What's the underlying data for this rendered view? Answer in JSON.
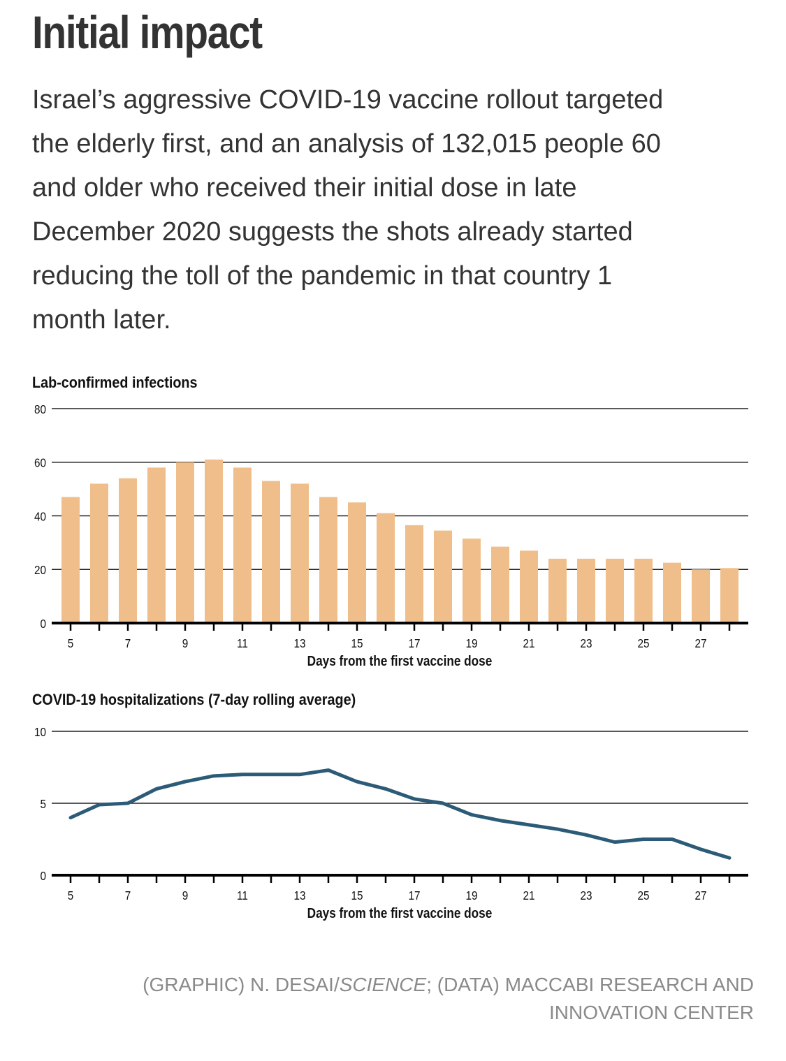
{
  "header": {
    "title": "Initial impact",
    "dek_lines": [
      "Israel’s aggressive COVID-19 vaccine rollout targeted",
      "the elderly first, and an analysis of 132,015 people 60",
      "and older who received their initial dose in late",
      "December 2020 suggests the shots already started",
      "reducing the toll of the pandemic in that country 1",
      "month later."
    ]
  },
  "colors": {
    "bar": "#EFBE8A",
    "line": "#2C5B78",
    "axis": "#111111",
    "text": "#333333",
    "credit": "#8a8a8a"
  },
  "chart_data": [
    {
      "type": "bar",
      "title": "Lab-confirmed infections",
      "xlabel": "Days from the first vaccine dose",
      "ylabel": "",
      "x": [
        5,
        6,
        7,
        8,
        9,
        10,
        11,
        12,
        13,
        14,
        15,
        16,
        17,
        18,
        19,
        20,
        21,
        22,
        23,
        24,
        25,
        26,
        27,
        28
      ],
      "values": [
        47,
        52,
        54,
        58,
        60,
        61,
        58,
        53,
        52,
        47,
        45,
        41,
        36.5,
        34.5,
        31.5,
        28.5,
        27,
        24,
        24,
        24,
        24,
        22.5,
        20,
        20.5
      ],
      "x_tick_labels": [
        "5",
        "7",
        "9",
        "11",
        "13",
        "15",
        "17",
        "19",
        "21",
        "23",
        "25",
        "27"
      ],
      "y_ticks": [
        0,
        20,
        40,
        60,
        80
      ],
      "ylim": [
        0,
        80
      ],
      "grid": true,
      "legend": "none"
    },
    {
      "type": "line",
      "title": "COVID-19 hospitalizations (7-day rolling average)",
      "xlabel": "Days from the first vaccine dose",
      "ylabel": "",
      "x": [
        5,
        6,
        7,
        8,
        9,
        10,
        11,
        12,
        13,
        14,
        15,
        16,
        17,
        18,
        19,
        20,
        21,
        22,
        23,
        24,
        25,
        26,
        27,
        28
      ],
      "values": [
        4.0,
        4.9,
        5.0,
        6.0,
        6.5,
        6.9,
        7.0,
        7.0,
        7.0,
        7.3,
        6.5,
        6.0,
        5.3,
        5.0,
        4.2,
        3.8,
        3.5,
        3.2,
        2.8,
        2.3,
        2.5,
        2.5,
        1.8,
        1.2
      ],
      "x_tick_labels": [
        "5",
        "7",
        "9",
        "11",
        "13",
        "15",
        "17",
        "19",
        "21",
        "23",
        "25",
        "27"
      ],
      "y_ticks": [
        0,
        5,
        10
      ],
      "ylim": [
        0,
        10
      ],
      "grid": true,
      "legend": "none"
    }
  ],
  "credit": {
    "line1_pre": "(GRAPHIC) N. DESAI/",
    "line1_italic": "SCIENCE",
    "line1_post": "; (DATA) MACCABI RESEARCH AND",
    "line2": "INNOVATION CENTER"
  }
}
